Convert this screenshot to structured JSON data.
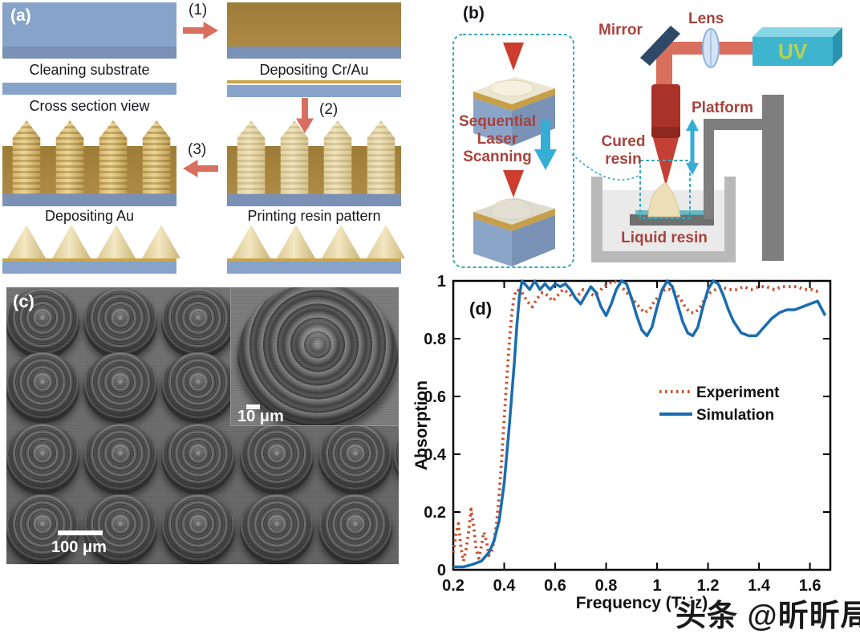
{
  "panel_a": {
    "label": "(a)",
    "labels": {
      "cleaning": "Cleaning substrate",
      "cross_section": "Cross section view",
      "dep_crau": "Depositing Cr/Au",
      "printing": "Printing resin pattern",
      "dep_au": "Depositing Au"
    },
    "step1": "(1)",
    "step2": "(2)",
    "step3": "(3)"
  },
  "panel_b": {
    "label": "(b)",
    "mirror": "Mirror",
    "lens": "Lens",
    "uv": "UV",
    "platform": "Platform",
    "cured": [
      "Cured",
      "resin"
    ],
    "liquid": "Liquid resin",
    "seq": [
      "Sequential",
      "Laser",
      "Scanning"
    ]
  },
  "panel_c": {
    "label": "(c)",
    "scalebar_main": "100 μm",
    "scalebar_inset": "10 μm"
  },
  "panel_d": {
    "label": "(d)"
  },
  "watermark": "头条 @昕昕局",
  "colors": {
    "experiment": "#c8502d",
    "simulation": "#1a6cb0",
    "diagram_label_red": "#a8423c",
    "teal_dash": "#3aa8c0",
    "salmon_arrow": "#d96f5e",
    "gold": "#a8863e",
    "substrate_blue": "#87a3c9",
    "uv_box": "#3fb4cf",
    "uv_text": "#b9d24a"
  },
  "chart_data": {
    "type": "line",
    "title": "",
    "xlabel": "Frequency (THz)",
    "ylabel": "Absorption",
    "xlim": [
      0.2,
      1.68
    ],
    "ylim": [
      0,
      1
    ],
    "grid": false,
    "legend_position": "center-right",
    "xticks": [
      [
        0.2,
        "0.2"
      ],
      [
        0.4,
        "0.4"
      ],
      [
        0.6,
        "0.6"
      ],
      [
        0.8,
        "0.8"
      ],
      [
        1.0,
        "1"
      ],
      [
        1.2,
        "1.2"
      ],
      [
        1.4,
        "1.4"
      ],
      [
        1.6,
        "1.6"
      ]
    ],
    "yticks": [
      [
        0,
        "0"
      ],
      [
        0.2,
        "0.2"
      ],
      [
        0.4,
        "0.4"
      ],
      [
        0.6,
        "0.6"
      ],
      [
        0.8,
        "0.8"
      ],
      [
        1,
        "1"
      ]
    ],
    "series": [
      {
        "name": "Experiment",
        "color": "#c8502d",
        "style": "dotted",
        "points": [
          [
            0.2,
            0.06
          ],
          [
            0.21,
            0.12
          ],
          [
            0.22,
            0.16
          ],
          [
            0.23,
            0.08
          ],
          [
            0.24,
            0.03
          ],
          [
            0.25,
            0.07
          ],
          [
            0.26,
            0.13
          ],
          [
            0.27,
            0.21
          ],
          [
            0.28,
            0.15
          ],
          [
            0.29,
            0.07
          ],
          [
            0.3,
            0.04
          ],
          [
            0.31,
            0.08
          ],
          [
            0.32,
            0.13
          ],
          [
            0.33,
            0.1
          ],
          [
            0.34,
            0.05
          ],
          [
            0.35,
            0.06
          ],
          [
            0.36,
            0.1
          ],
          [
            0.37,
            0.16
          ],
          [
            0.38,
            0.26
          ],
          [
            0.39,
            0.38
          ],
          [
            0.4,
            0.52
          ],
          [
            0.41,
            0.66
          ],
          [
            0.42,
            0.79
          ],
          [
            0.43,
            0.89
          ],
          [
            0.44,
            0.95
          ],
          [
            0.45,
            0.97
          ],
          [
            0.47,
            0.96
          ],
          [
            0.49,
            0.93
          ],
          [
            0.51,
            0.91
          ],
          [
            0.53,
            0.94
          ],
          [
            0.55,
            0.96
          ],
          [
            0.57,
            0.95
          ],
          [
            0.59,
            0.93
          ],
          [
            0.61,
            0.95
          ],
          [
            0.63,
            0.97
          ],
          [
            0.65,
            0.96
          ],
          [
            0.67,
            0.94
          ],
          [
            0.69,
            0.95
          ],
          [
            0.71,
            0.97
          ],
          [
            0.73,
            0.96
          ],
          [
            0.75,
            0.95
          ],
          [
            0.77,
            0.96
          ],
          [
            0.79,
            0.98
          ],
          [
            0.81,
            0.99
          ],
          [
            0.83,
            1.0
          ],
          [
            0.85,
            0.99
          ],
          [
            0.87,
            0.97
          ],
          [
            0.89,
            0.95
          ],
          [
            0.91,
            0.93
          ],
          [
            0.93,
            0.91
          ],
          [
            0.95,
            0.89
          ],
          [
            0.97,
            0.9
          ],
          [
            0.99,
            0.93
          ],
          [
            1.01,
            0.95
          ],
          [
            1.03,
            0.97
          ],
          [
            1.05,
            0.97
          ],
          [
            1.07,
            0.96
          ],
          [
            1.09,
            0.94
          ],
          [
            1.11,
            0.91
          ],
          [
            1.13,
            0.89
          ],
          [
            1.15,
            0.89
          ],
          [
            1.17,
            0.91
          ],
          [
            1.19,
            0.94
          ],
          [
            1.21,
            0.96
          ],
          [
            1.23,
            0.97
          ],
          [
            1.25,
            0.98
          ],
          [
            1.28,
            0.97
          ],
          [
            1.31,
            0.97
          ],
          [
            1.34,
            0.98
          ],
          [
            1.37,
            0.97
          ],
          [
            1.4,
            0.98
          ],
          [
            1.43,
            0.98
          ],
          [
            1.46,
            0.97
          ],
          [
            1.49,
            0.98
          ],
          [
            1.52,
            0.98
          ],
          [
            1.55,
            0.98
          ],
          [
            1.58,
            0.97
          ],
          [
            1.61,
            0.97
          ],
          [
            1.64,
            0.96
          ]
        ]
      },
      {
        "name": "Simulation",
        "color": "#1a6cb0",
        "style": "solid",
        "points": [
          [
            0.2,
            0.01
          ],
          [
            0.24,
            0.01
          ],
          [
            0.28,
            0.02
          ],
          [
            0.31,
            0.03
          ],
          [
            0.34,
            0.06
          ],
          [
            0.36,
            0.1
          ],
          [
            0.38,
            0.17
          ],
          [
            0.4,
            0.3
          ],
          [
            0.42,
            0.5
          ],
          [
            0.44,
            0.72
          ],
          [
            0.45,
            0.85
          ],
          [
            0.46,
            0.95
          ],
          [
            0.47,
            1.0
          ],
          [
            0.49,
            0.98
          ],
          [
            0.5,
            0.97
          ],
          [
            0.52,
            1.0
          ],
          [
            0.54,
            0.97
          ],
          [
            0.56,
            0.99
          ],
          [
            0.58,
            0.97
          ],
          [
            0.6,
            0.99
          ],
          [
            0.62,
            0.98
          ],
          [
            0.64,
            0.99
          ],
          [
            0.66,
            0.97
          ],
          [
            0.68,
            0.94
          ],
          [
            0.7,
            0.92
          ],
          [
            0.72,
            0.95
          ],
          [
            0.74,
            0.98
          ],
          [
            0.76,
            0.96
          ],
          [
            0.78,
            0.91
          ],
          [
            0.8,
            0.88
          ],
          [
            0.82,
            0.92
          ],
          [
            0.84,
            0.97
          ],
          [
            0.86,
            1.0
          ],
          [
            0.88,
            0.99
          ],
          [
            0.9,
            0.94
          ],
          [
            0.92,
            0.88
          ],
          [
            0.94,
            0.83
          ],
          [
            0.96,
            0.81
          ],
          [
            0.98,
            0.84
          ],
          [
            1.0,
            0.91
          ],
          [
            1.02,
            0.97
          ],
          [
            1.04,
            1.0
          ],
          [
            1.06,
            0.98
          ],
          [
            1.08,
            0.92
          ],
          [
            1.1,
            0.86
          ],
          [
            1.12,
            0.82
          ],
          [
            1.14,
            0.81
          ],
          [
            1.16,
            0.84
          ],
          [
            1.18,
            0.91
          ],
          [
            1.2,
            0.97
          ],
          [
            1.22,
            1.0
          ],
          [
            1.24,
            0.99
          ],
          [
            1.26,
            0.95
          ],
          [
            1.28,
            0.9
          ],
          [
            1.3,
            0.86
          ],
          [
            1.33,
            0.82
          ],
          [
            1.36,
            0.81
          ],
          [
            1.39,
            0.81
          ],
          [
            1.42,
            0.84
          ],
          [
            1.45,
            0.87
          ],
          [
            1.48,
            0.89
          ],
          [
            1.51,
            0.9
          ],
          [
            1.54,
            0.9
          ],
          [
            1.57,
            0.91
          ],
          [
            1.6,
            0.92
          ],
          [
            1.63,
            0.93
          ],
          [
            1.66,
            0.88
          ]
        ]
      }
    ]
  }
}
